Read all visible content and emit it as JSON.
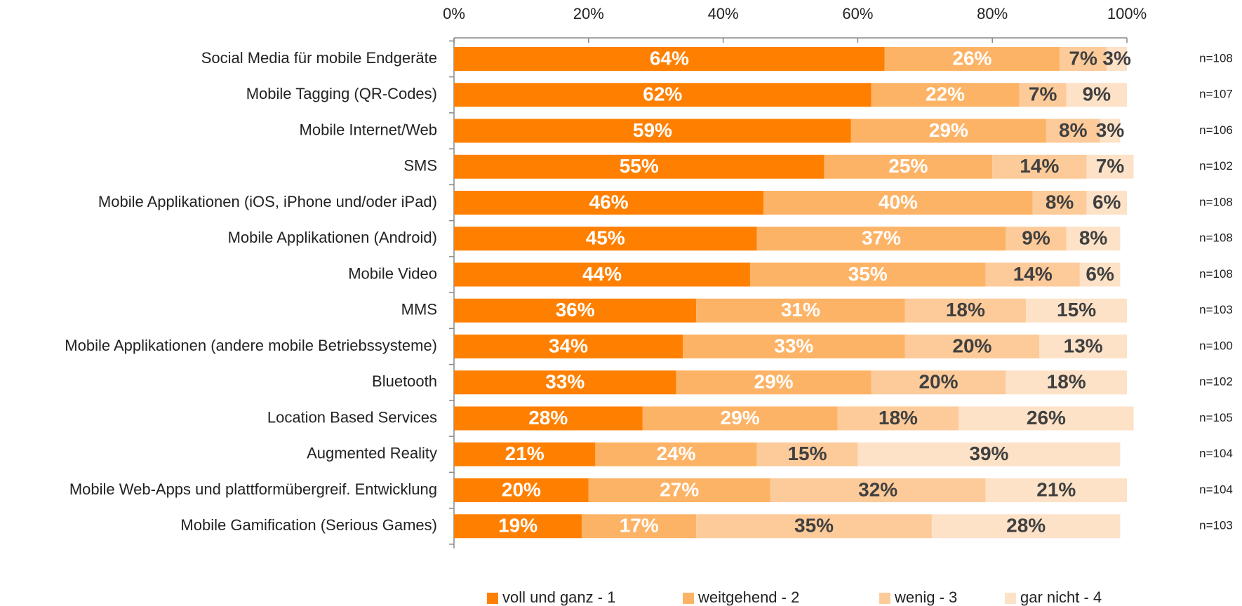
{
  "chart_data": {
    "type": "stacked-barh",
    "categories": [
      "Social Media für mobile Endgeräte",
      "Mobile Tagging (QR-Codes)",
      "Mobile Internet/Web",
      "SMS",
      "Mobile Applikationen (iOS, iPhone und/oder iPad)",
      "Mobile Applikationen (Android)",
      "Mobile Video",
      "MMS",
      "Mobile Applikationen (andere mobile Betriebssysteme)",
      "Bluetooth",
      "Location Based Services",
      "Augmented Reality",
      "Mobile Web-Apps und plattformübergreif. Entwicklung",
      "Mobile Gamification (Serious Games)"
    ],
    "n_labels": [
      "n=108",
      "n=107",
      "n=106",
      "n=102",
      "n=108",
      "n=108",
      "n=108",
      "n=103",
      "n=100",
      "n=102",
      "n=105",
      "n=104",
      "n=104",
      "n=103"
    ],
    "series": [
      {
        "name": "voll und ganz - 1",
        "color": "#ff8000",
        "label_color": "#ffffff",
        "values": [
          64,
          62,
          59,
          55,
          46,
          45,
          44,
          36,
          34,
          33,
          28,
          21,
          20,
          19
        ],
        "value_labels": [
          "64%",
          "62%",
          "59%",
          "55%",
          "46%",
          "45%",
          "44%",
          "36%",
          "34%",
          "33%",
          "28%",
          "21%",
          "20%",
          "19%"
        ]
      },
      {
        "name": "weitgehend - 2",
        "color": "#fdb366",
        "label_color": "#ffffff",
        "values": [
          26,
          22,
          29,
          25,
          40,
          37,
          35,
          31,
          33,
          29,
          29,
          24,
          27,
          17
        ],
        "value_labels": [
          "26%",
          "22%",
          "29%",
          "25%",
          "40%",
          "37%",
          "35%",
          "31%",
          "33%",
          "29%",
          "29%",
          "24%",
          "27%",
          "17%"
        ]
      },
      {
        "name": "wenig - 3",
        "color": "#fdcb9a",
        "label_color": "#404040",
        "values": [
          7,
          7,
          8,
          14,
          8,
          9,
          14,
          18,
          20,
          20,
          18,
          15,
          32,
          35
        ],
        "value_labels": [
          "7%",
          "7%",
          "8%",
          "14%",
          "8%",
          "9%",
          "14%",
          "18%",
          "20%",
          "20%",
          "18%",
          "15%",
          "32%",
          "35%"
        ]
      },
      {
        "name": "gar nicht - 4",
        "color": "#fde2c8",
        "label_color": "#404040",
        "values": [
          3,
          9,
          3,
          7,
          6,
          8,
          6,
          15,
          13,
          18,
          26,
          39,
          21,
          28
        ],
        "value_labels": [
          "3%",
          "9%",
          "3%",
          "7%",
          "6%",
          "8%",
          "6%",
          "15%",
          "13%",
          "18%",
          "26%",
          "39%",
          "21%",
          "28%"
        ]
      }
    ],
    "xlim": [
      0,
      100
    ],
    "xticks": [
      {
        "value": 0,
        "label": "0%"
      },
      {
        "value": 20,
        "label": "20%"
      },
      {
        "value": 40,
        "label": "40%"
      },
      {
        "value": 60,
        "label": "60%"
      },
      {
        "value": 80,
        "label": "80%"
      },
      {
        "value": 100,
        "label": "100%"
      }
    ],
    "legend": "bottom"
  }
}
